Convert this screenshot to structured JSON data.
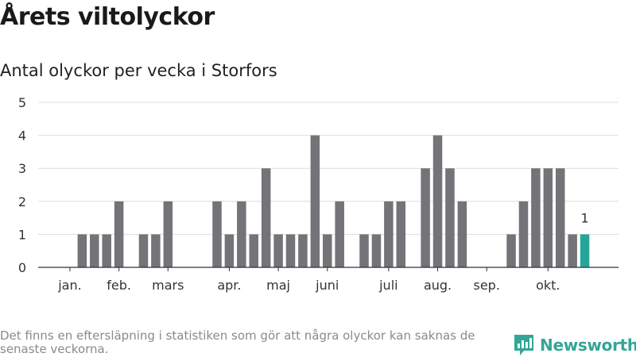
{
  "header": {
    "title": "Årets viltolyckor",
    "subtitle": "Antal olyckor per vecka i Storfors"
  },
  "footer": {
    "note": "Det finns en eftersläpning i statistiken som gör att några olyckor kan saknas de senaste veckorna.",
    "brand": "Newsworthy",
    "brand_icon": "bar-chart-logo-icon"
  },
  "colors": {
    "bar": "#737378",
    "highlight": "#26a69a",
    "grid": "#dddddd",
    "axis": "#333333",
    "brand": "#34a596"
  },
  "chart_data": {
    "type": "bar",
    "title": "Antal olyckor per vecka i Storfors",
    "xlabel": "",
    "ylabel": "",
    "ylim": [
      0,
      5
    ],
    "yticks": [
      0,
      1,
      2,
      3,
      4,
      5
    ],
    "x_ticks": [
      "jan.",
      "feb.",
      "mars",
      "apr.",
      "maj",
      "juni",
      "juli",
      "aug.",
      "sep.",
      "okt."
    ],
    "tick_weeks": [
      3,
      7,
      11,
      16,
      20,
      24,
      29,
      33,
      37,
      42
    ],
    "weeks": [
      1,
      2,
      3,
      4,
      5,
      6,
      7,
      8,
      9,
      10,
      11,
      12,
      13,
      14,
      15,
      16,
      17,
      18,
      19,
      20,
      21,
      22,
      23,
      24,
      25,
      26,
      27,
      28,
      29,
      30,
      31,
      32,
      33,
      34,
      35,
      36,
      37,
      38,
      39,
      40,
      41,
      42,
      43,
      44,
      45
    ],
    "values": [
      0,
      0,
      0,
      1,
      1,
      1,
      2,
      0,
      1,
      1,
      2,
      0,
      0,
      0,
      2,
      1,
      2,
      1,
      3,
      1,
      1,
      1,
      4,
      1,
      2,
      0,
      1,
      1,
      2,
      2,
      0,
      3,
      4,
      3,
      2,
      0,
      0,
      0,
      1,
      2,
      3,
      3,
      3,
      1,
      1
    ],
    "highlight_index": 44,
    "highlight_label": "1",
    "grid": true
  }
}
